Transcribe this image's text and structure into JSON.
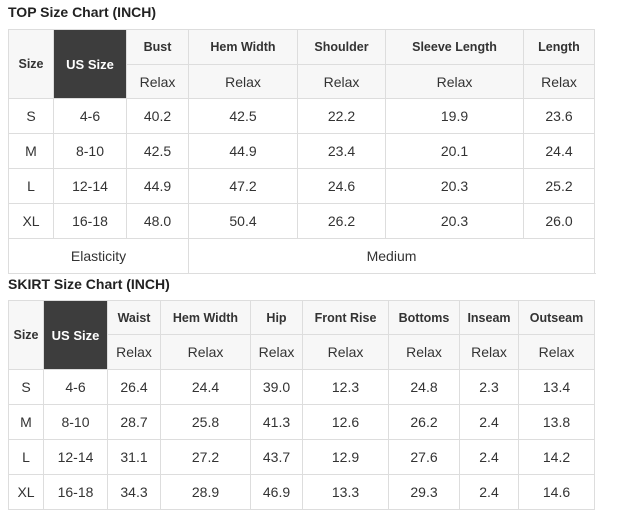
{
  "top": {
    "title": "TOP Size Chart (INCH)",
    "size_label": "Size",
    "us_size_label": "US Size",
    "columns": [
      "Bust",
      "Hem Width",
      "Shoulder",
      "Sleeve Length",
      "Length"
    ],
    "fit": [
      "Relax",
      "Relax",
      "Relax",
      "Relax",
      "Relax"
    ],
    "rows": [
      [
        "S",
        "4-6",
        "40.2",
        "42.5",
        "22.2",
        "19.9",
        "23.6"
      ],
      [
        "M",
        "8-10",
        "42.5",
        "44.9",
        "23.4",
        "20.1",
        "24.4"
      ],
      [
        "L",
        "12-14",
        "44.9",
        "47.2",
        "24.6",
        "20.3",
        "25.2"
      ],
      [
        "XL",
        "16-18",
        "48.0",
        "50.4",
        "26.2",
        "20.3",
        "26.0"
      ]
    ],
    "elasticity_label": "Elasticity",
    "elasticity_value": "Medium"
  },
  "skirt": {
    "title": "SKIRT Size Chart (INCH)",
    "size_label": "Size",
    "us_size_label": "US Size",
    "columns": [
      "Waist",
      "Hem Width",
      "Hip",
      "Front Rise",
      "Bottoms",
      "Inseam",
      "Outseam"
    ],
    "fit": [
      "Relax",
      "Relax",
      "Relax",
      "Relax",
      "Relax",
      "Relax",
      "Relax"
    ],
    "rows": [
      [
        "S",
        "4-6",
        "26.4",
        "24.4",
        "39.0",
        "12.3",
        "24.8",
        "2.3",
        "13.4"
      ],
      [
        "M",
        "8-10",
        "28.7",
        "25.8",
        "41.3",
        "12.6",
        "26.2",
        "2.4",
        "13.8"
      ],
      [
        "L",
        "12-14",
        "31.1",
        "27.2",
        "43.7",
        "12.9",
        "27.6",
        "2.4",
        "14.2"
      ],
      [
        "XL",
        "16-18",
        "34.3",
        "28.9",
        "46.9",
        "13.3",
        "29.3",
        "2.4",
        "14.6"
      ]
    ]
  },
  "colors": {
    "us_size_header_bg": "#3d3d3d",
    "header_bg": "#f7f7f7",
    "border": "#dddddd"
  }
}
